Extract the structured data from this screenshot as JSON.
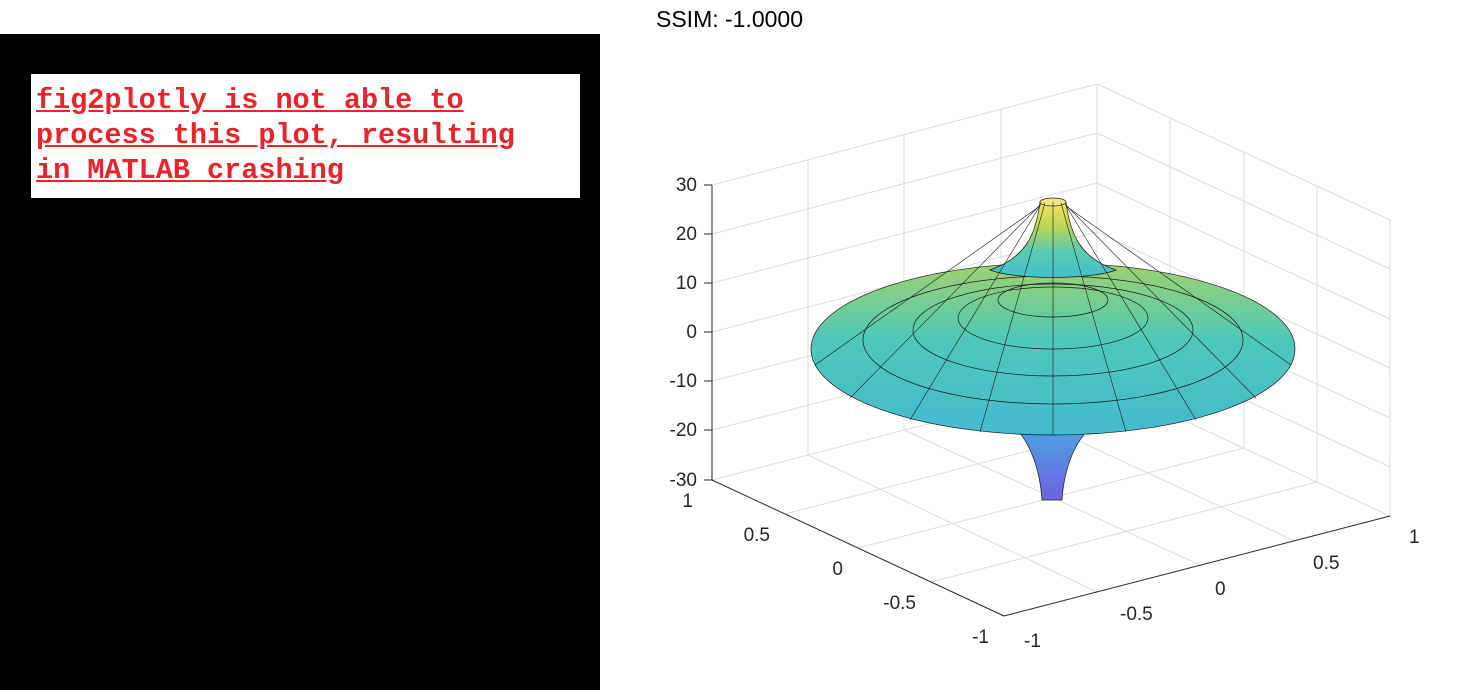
{
  "error_message": "fig2plotly is not able to\nprocess this plot, resulting\nin MATLAB crashing",
  "title": "SSIM: -1.0000",
  "chart_data": {
    "type": "surface",
    "surface": "spinning-top (torus-like pseudosphere), z = tan-shaped profile vs radius",
    "xlim": [
      -1,
      1
    ],
    "ylim": [
      -1,
      1
    ],
    "zlim": [
      -30,
      30
    ],
    "x_ticks": [
      "-1",
      "-0.5",
      "0",
      "0.5",
      "1"
    ],
    "y_ticks": [
      "-1",
      "-0.5",
      "0",
      "0.5",
      "1"
    ],
    "z_ticks": [
      "30",
      "20",
      "10",
      "0",
      "-10",
      "-20",
      "-30"
    ],
    "colormap": "parula",
    "grid": true
  }
}
